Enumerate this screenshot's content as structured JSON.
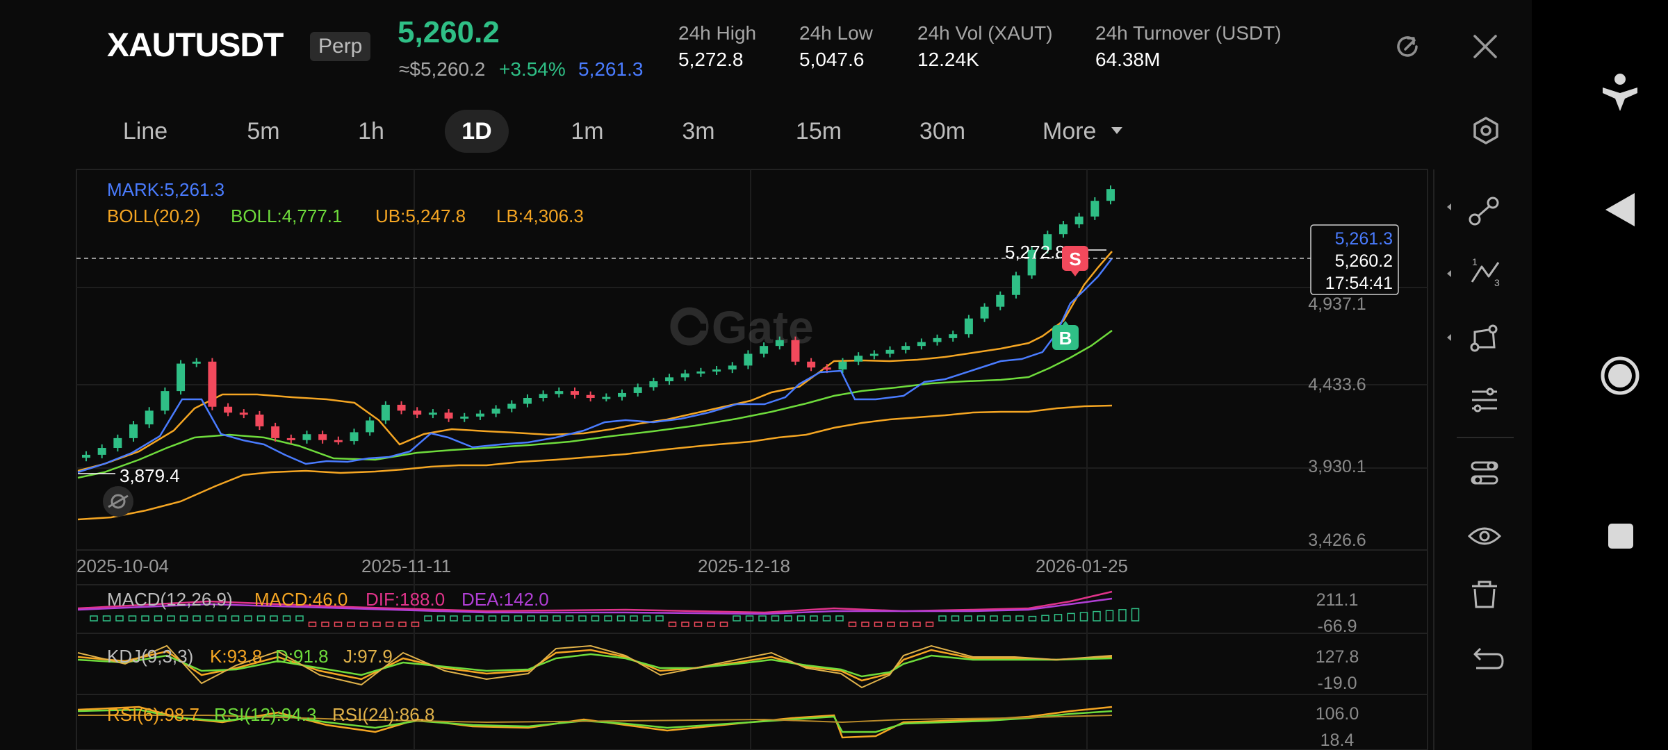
{
  "header": {
    "symbol": "XAUTUSDT",
    "contract_type": "Perp",
    "last_price": "5,260.2",
    "approx_usd": "≈$5,260.2",
    "change_pct": "+3.54%",
    "mark_price": "5,261.3",
    "stats": [
      {
        "label": "24h  High",
        "value": "5,272.8"
      },
      {
        "label": "24h  Low",
        "value": "5,047.6"
      },
      {
        "label": "24h  Vol (XAUT)",
        "value": "12.24K"
      },
      {
        "label": "24h  Turnover (USDT)",
        "value": "64.38M"
      }
    ]
  },
  "tabs": [
    "Line",
    "5m",
    "1h",
    "1D",
    "1m",
    "3m",
    "15m",
    "30m",
    "More"
  ],
  "active_tab": "1D",
  "indicators": {
    "mark": "MARK:5,261.3",
    "boll_params": "BOLL(20,2)",
    "boll": "BOLL:4,777.1",
    "ub": "UB:5,247.8",
    "lb": "LB:4,306.3",
    "macd_params": "MACD(12,26,9)",
    "macd": "MACD:46.0",
    "dif": "DIF:188.0",
    "dea": "DEA:142.0",
    "kdj_params": "KDJ(9,3,3)",
    "k": "K:93.8",
    "d": "D:91.8",
    "j": "J:97.9",
    "rsi6": "RSI(6):98.7",
    "rsi12": "RSI(12):94.3",
    "rsi24": "RSI(24):86.8"
  },
  "price_axis": [
    "4,937.1",
    "4,433.6",
    "3,930.1",
    "3,426.6"
  ],
  "date_axis": [
    "2025-10-04",
    "2025-11-11",
    "2025-12-18",
    "2026-01-25"
  ],
  "macd_axis": [
    "211.1",
    "-66.9"
  ],
  "kdj_axis": [
    "127.8",
    "-19.0"
  ],
  "rsi_axis": [
    "106.0",
    "18.4"
  ],
  "annotations": {
    "high_label": "5,272.8",
    "low_label": "3,879.4",
    "sell_marker": "S",
    "buy_marker": "B",
    "watermark": "Gate"
  },
  "price_tag": {
    "mark": "5,261.3",
    "last": "5,260.2",
    "countdown": "17:54:41"
  },
  "colors": {
    "up": "#2fbf86",
    "down": "#f2495c",
    "mark": "#4a7cff",
    "boll_band": "#f5a623",
    "boll_mid": "#6fdc3c",
    "macd_dif": "#e0338a",
    "macd_dea": "#b13fd6"
  },
  "chart_data": {
    "type": "candlestick",
    "x_range": [
      "2025-09-26",
      "2026-01-30"
    ],
    "y_range": [
      3426.6,
      5360
    ],
    "high": 5272.8,
    "low": 3879.4,
    "close_series": [
      3905,
      3940,
      3990,
      4060,
      4130,
      4230,
      4370,
      4380,
      4150,
      4120,
      4110,
      4050,
      3990,
      3980,
      4010,
      3980,
      3975,
      4020,
      4080,
      4160,
      4130,
      4110,
      4120,
      4090,
      4100,
      4115,
      4140,
      4165,
      4195,
      4215,
      4230,
      4210,
      4195,
      4200,
      4220,
      4250,
      4280,
      4300,
      4320,
      4330,
      4340,
      4360,
      4420,
      4460,
      4490,
      4380,
      4350,
      4340,
      4380,
      4410,
      4420,
      4440,
      4460,
      4480,
      4500,
      4520,
      4600,
      4660,
      4720,
      4820,
      4950,
      5030,
      5080,
      5120,
      5200,
      5260.2
    ]
  }
}
